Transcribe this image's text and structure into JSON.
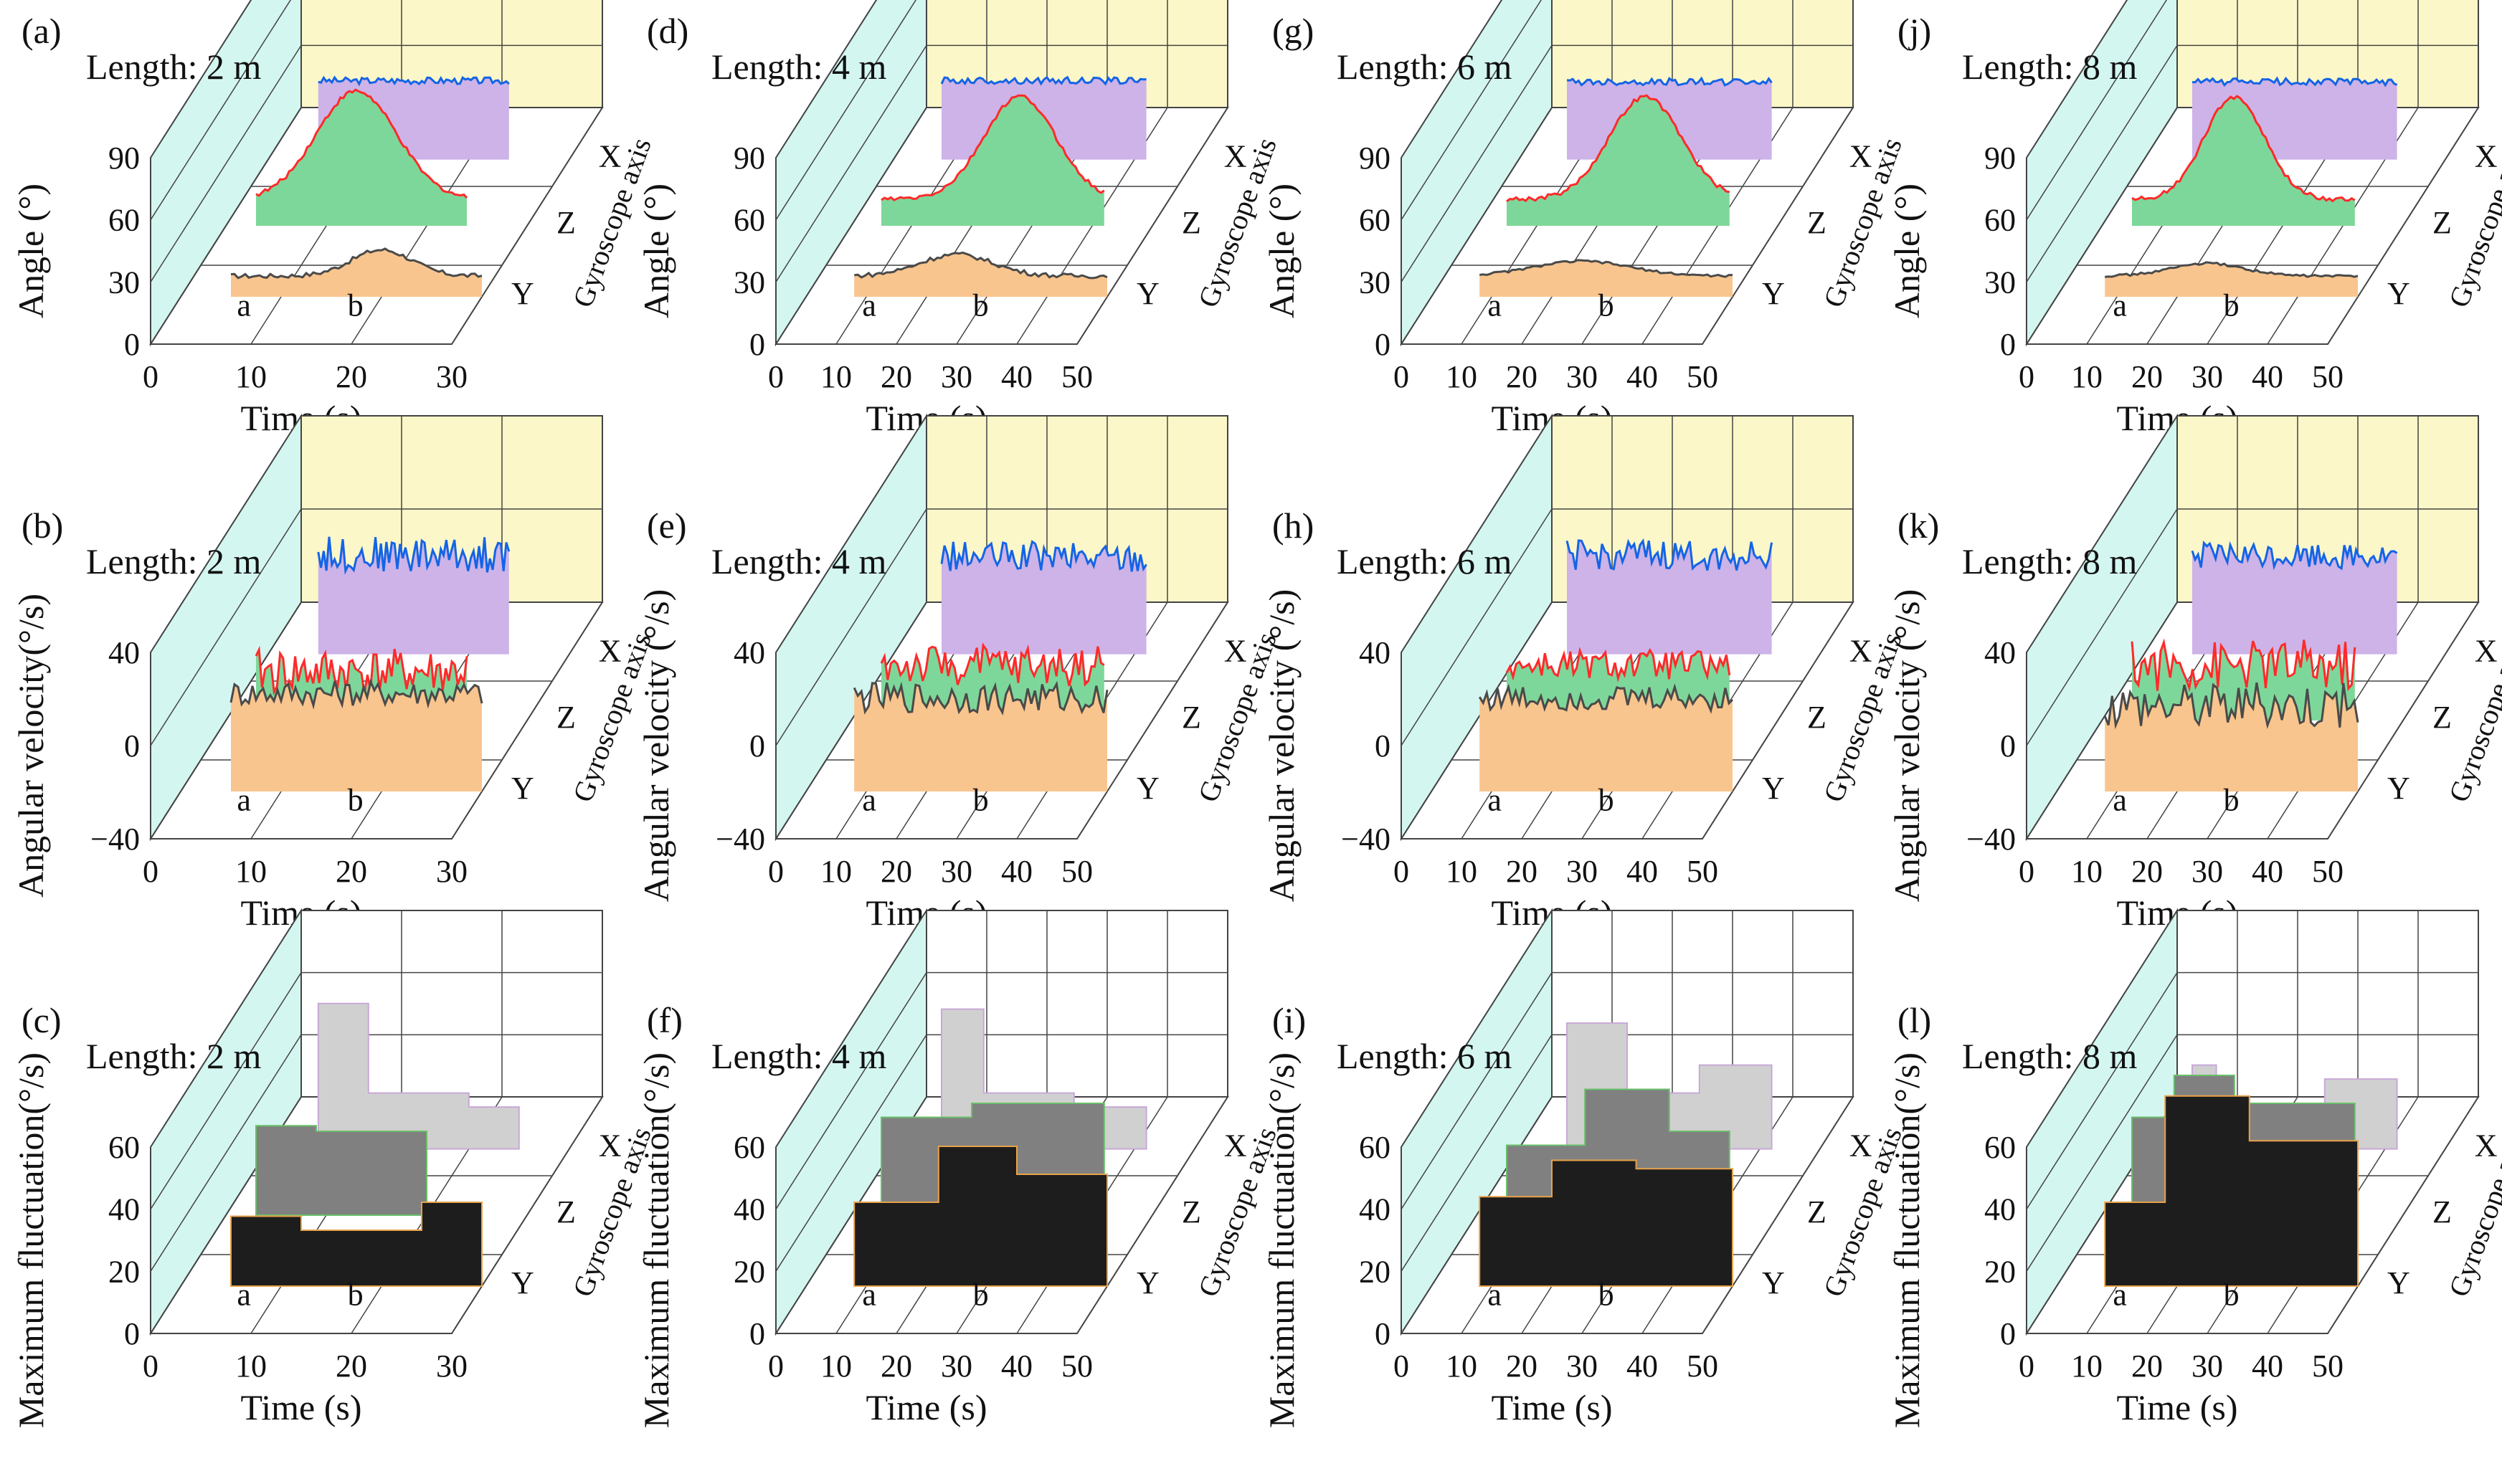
{
  "figure": {
    "colors": {
      "wall": "#d4f6f1",
      "back_wall": "#fbf7c8",
      "floor": "#ffffff",
      "grid": "#444444",
      "x_fill": "#cdb3e8",
      "x_line": "#1464e6",
      "z_fill": "#7ed79a",
      "z_line": "#ff2a2a",
      "y_fill": "#f9c58e",
      "y_line": "#4a4a4a",
      "fluct_x": "#d0d0d0",
      "fluct_z": "#808080",
      "fluct_y": "#1d1d1d",
      "fluct_z_edge": "#6abf6a",
      "fluct_y_edge": "#e8a24a",
      "fluct_x_edge": "#c9a8d8"
    }
  },
  "chart_data": [
    {
      "id": "a",
      "panel_label": "(a)",
      "title": "Length: 2 m",
      "type": "area3d",
      "ylabel": "Angle (°)",
      "xlabel": "Time (s)",
      "zlabel": "Gyroscope axis",
      "zcats": [
        "X",
        "Z",
        "Y"
      ],
      "xticks": [
        "0",
        "10",
        "20",
        "30"
      ],
      "yticks": [
        "0",
        "30",
        "60",
        "90"
      ],
      "xlim": [
        0,
        30
      ],
      "ylim": [
        0,
        90
      ],
      "markers": [
        "a",
        "b"
      ],
      "series": [
        {
          "name": "X",
          "start": 5,
          "end": 24,
          "base": 60,
          "peak": 72,
          "noise": 3
        },
        {
          "name": "Z",
          "start": 3,
          "end": 24,
          "base": 20,
          "peak": 115,
          "center": 13,
          "width": 4,
          "noise": 2
        },
        {
          "name": "Y",
          "start": 5,
          "end": 30,
          "base": 15,
          "peak": 38,
          "center": 20,
          "width": 3,
          "noise": 2
        }
      ]
    },
    {
      "id": "b",
      "panel_label": "(b)",
      "title": "Length: 2 m",
      "type": "area3d",
      "ylabel": "Angular velocity(°/s)",
      "xlabel": "Time (s)",
      "zlabel": "Gyroscope axis",
      "zcats": [
        "X",
        "Z",
        "Y"
      ],
      "xticks": [
        "0",
        "10",
        "20",
        "30"
      ],
      "yticks": [
        "−40",
        "0",
        "40"
      ],
      "xlim": [
        0,
        30
      ],
      "ylim": [
        -40,
        40
      ],
      "markers": [
        "a",
        "b"
      ],
      "series": [
        {
          "name": "X",
          "start": 5,
          "end": 24,
          "base": 30,
          "peak": 40,
          "noise": 14
        },
        {
          "name": "Z",
          "start": 3,
          "end": 24,
          "base": -10,
          "peak": 0,
          "noise": 18
        },
        {
          "name": "Y",
          "start": 5,
          "end": 30,
          "base": 30,
          "peak": 38,
          "noise": 10
        }
      ]
    },
    {
      "id": "c",
      "panel_label": "(c)",
      "title": "Length: 2 m",
      "type": "step3d",
      "ylabel": "Maximum fluctuation(°/s)",
      "xlabel": "Time (s)",
      "zlabel": "Gyroscope axis",
      "zcats": [
        "X",
        "Z",
        "Y"
      ],
      "xticks": [
        "0",
        "10",
        "20",
        "30"
      ],
      "yticks": [
        "0",
        "20",
        "40",
        "60"
      ],
      "xlim": [
        0,
        30
      ],
      "ylim": [
        0,
        60
      ],
      "markers": [
        "a",
        "b"
      ],
      "series": [
        {
          "name": "X",
          "x": [
            5,
            10,
            20,
            25
          ],
          "y": [
            52,
            20,
            15,
            18
          ]
        },
        {
          "name": "Z",
          "x": [
            3,
            9,
            15,
            20
          ],
          "y": [
            32,
            30,
            30,
            38
          ]
        },
        {
          "name": "Y",
          "x": [
            5,
            12,
            24,
            30
          ],
          "y": [
            25,
            20,
            30,
            30
          ]
        }
      ]
    },
    {
      "id": "d",
      "panel_label": "(d)",
      "title": "Length: 4 m",
      "type": "area3d",
      "ylabel": "Angle (°)",
      "xlabel": "Time (s)",
      "zlabel": "Gyroscope axis",
      "zcats": [
        "X",
        "Z",
        "Y"
      ],
      "xticks": [
        "0",
        "10",
        "20",
        "30",
        "40",
        "50"
      ],
      "yticks": [
        "0",
        "30",
        "60",
        "90"
      ],
      "xlim": [
        0,
        50
      ],
      "ylim": [
        0,
        90
      ],
      "markers": [
        "a",
        "b"
      ],
      "series": [
        {
          "name": "X",
          "start": 8,
          "end": 42,
          "base": 60,
          "peak": 72,
          "noise": 3
        },
        {
          "name": "Z",
          "start": 5,
          "end": 42,
          "base": 20,
          "peak": 110,
          "center": 28,
          "width": 6,
          "noise": 2
        },
        {
          "name": "Y",
          "start": 8,
          "end": 50,
          "base": 15,
          "peak": 34,
          "center": 25,
          "width": 6,
          "noise": 2
        }
      ]
    },
    {
      "id": "e",
      "panel_label": "(e)",
      "title": "Length: 4 m",
      "type": "area3d",
      "ylabel": "Angular velocity (°/s)",
      "xlabel": "Time (s)",
      "zlabel": "Gyroscope axis",
      "zcats": [
        "X",
        "Z",
        "Y"
      ],
      "xticks": [
        "0",
        "10",
        "20",
        "30",
        "40",
        "50"
      ],
      "yticks": [
        "−40",
        "0",
        "40"
      ],
      "xlim": [
        0,
        50
      ],
      "ylim": [
        -40,
        40
      ],
      "markers": [
        "a",
        "b"
      ],
      "series": [
        {
          "name": "X",
          "start": 8,
          "end": 42,
          "base": 28,
          "peak": 38,
          "noise": 12
        },
        {
          "name": "Z",
          "start": 5,
          "end": 42,
          "base": -5,
          "peak": 5,
          "noise": 16
        },
        {
          "name": "Y",
          "start": 8,
          "end": 50,
          "base": 25,
          "peak": 35,
          "noise": 12
        }
      ]
    },
    {
      "id": "f",
      "panel_label": "(f)",
      "title": "Length: 4 m",
      "type": "step3d",
      "ylabel": "Maximum fluctuation(°/s)",
      "xlabel": "Time (s)",
      "zlabel": "Gyroscope axis",
      "zcats": [
        "X",
        "Z",
        "Y"
      ],
      "xticks": [
        "0",
        "10",
        "20",
        "30",
        "40",
        "50"
      ],
      "yticks": [
        "0",
        "20",
        "40",
        "60"
      ],
      "xlim": [
        0,
        50
      ],
      "ylim": [
        0,
        60
      ],
      "markers": [
        "a",
        "b"
      ],
      "series": [
        {
          "name": "X",
          "x": [
            8,
            15,
            30,
            42
          ],
          "y": [
            50,
            20,
            15,
            15
          ]
        },
        {
          "name": "Z",
          "x": [
            5,
            20,
            32,
            42
          ],
          "y": [
            35,
            40,
            40,
            42
          ]
        },
        {
          "name": "Y",
          "x": [
            8,
            22,
            35,
            50
          ],
          "y": [
            30,
            50,
            40,
            40
          ]
        }
      ]
    },
    {
      "id": "g",
      "panel_label": "(g)",
      "title": "Length: 6 m",
      "type": "area3d",
      "ylabel": "Angle (°)",
      "xlabel": "Time (s)",
      "zlabel": "Gyroscope axis",
      "zcats": [
        "X",
        "Z",
        "Y"
      ],
      "xticks": [
        "0",
        "10",
        "20",
        "30",
        "40",
        "50"
      ],
      "yticks": [
        "0",
        "30",
        "60",
        "90"
      ],
      "xlim": [
        0,
        50
      ],
      "ylim": [
        0,
        90
      ],
      "markers": [
        "a",
        "b"
      ],
      "series": [
        {
          "name": "X",
          "start": 8,
          "end": 42,
          "base": 60,
          "peak": 70,
          "noise": 3
        },
        {
          "name": "Z",
          "start": 5,
          "end": 42,
          "base": 20,
          "peak": 110,
          "center": 28,
          "width": 6,
          "noise": 2
        },
        {
          "name": "Y",
          "start": 8,
          "end": 50,
          "base": 15,
          "peak": 28,
          "center": 25,
          "width": 8,
          "noise": 1
        }
      ]
    },
    {
      "id": "h",
      "panel_label": "(h)",
      "title": "Length: 6 m",
      "type": "area3d",
      "ylabel": "Angular velocity (°/s)",
      "xlabel": "Time (s)",
      "zlabel": "Gyroscope axis",
      "zcats": [
        "X",
        "Z",
        "Y"
      ],
      "xticks": [
        "0",
        "10",
        "20",
        "30",
        "40",
        "50"
      ],
      "yticks": [
        "−40",
        "0",
        "40"
      ],
      "xlim": [
        0,
        50
      ],
      "ylim": [
        -40,
        40
      ],
      "markers": [
        "a",
        "b"
      ],
      "series": [
        {
          "name": "X",
          "start": 8,
          "end": 42,
          "base": 28,
          "peak": 40,
          "noise": 12
        },
        {
          "name": "Z",
          "start": 5,
          "end": 42,
          "base": -5,
          "peak": 5,
          "noise": 12
        },
        {
          "name": "Y",
          "start": 8,
          "end": 50,
          "base": 25,
          "peak": 35,
          "noise": 10
        }
      ]
    },
    {
      "id": "i",
      "panel_label": "(i)",
      "title": "Length: 6 m",
      "type": "step3d",
      "ylabel": "Maximum fluctuation(°/s)",
      "xlabel": "Time (s)",
      "zlabel": "Gyroscope axis",
      "zcats": [
        "X",
        "Z",
        "Y"
      ],
      "xticks": [
        "0",
        "10",
        "20",
        "30",
        "40",
        "50"
      ],
      "yticks": [
        "0",
        "20",
        "40",
        "60"
      ],
      "xlim": [
        0,
        50
      ],
      "ylim": [
        0,
        60
      ],
      "markers": [
        "a",
        "b"
      ],
      "series": [
        {
          "name": "X",
          "x": [
            8,
            18,
            30,
            42
          ],
          "y": [
            45,
            20,
            30,
            20
          ]
        },
        {
          "name": "Z",
          "x": [
            5,
            18,
            32,
            42
          ],
          "y": [
            25,
            45,
            30,
            30
          ]
        },
        {
          "name": "Y",
          "x": [
            8,
            20,
            34,
            50
          ],
          "y": [
            32,
            45,
            42,
            42
          ]
        }
      ]
    },
    {
      "id": "j",
      "panel_label": "(j)",
      "title": "Length: 8 m",
      "type": "area3d",
      "ylabel": "Angle (°)",
      "xlabel": "Time (s)",
      "zlabel": "Gyroscope axis",
      "zcats": [
        "X",
        "Z",
        "Y"
      ],
      "xticks": [
        "0",
        "10",
        "20",
        "30",
        "40",
        "50"
      ],
      "yticks": [
        "0",
        "30",
        "60",
        "90"
      ],
      "xlim": [
        0,
        50
      ],
      "ylim": [
        0,
        90
      ],
      "markers": [
        "a",
        "b"
      ],
      "series": [
        {
          "name": "X",
          "start": 8,
          "end": 42,
          "base": 60,
          "peak": 70,
          "noise": 3
        },
        {
          "name": "Z",
          "start": 5,
          "end": 42,
          "base": 20,
          "peak": 110,
          "center": 22,
          "width": 5,
          "noise": 2
        },
        {
          "name": "Y",
          "start": 8,
          "end": 50,
          "base": 15,
          "peak": 26,
          "center": 25,
          "width": 6,
          "noise": 1
        }
      ]
    },
    {
      "id": "k",
      "panel_label": "(k)",
      "title": "Length: 8 m",
      "type": "area3d",
      "ylabel": "Angular velocity (°/s)",
      "xlabel": "Time (s)",
      "zlabel": "Gyroscope axis",
      "zcats": [
        "X",
        "Z",
        "Y"
      ],
      "xticks": [
        "0",
        "10",
        "20",
        "30",
        "40",
        "50"
      ],
      "yticks": [
        "−40",
        "0",
        "40"
      ],
      "xlim": [
        0,
        50
      ],
      "ylim": [
        -40,
        40
      ],
      "markers": [
        "a",
        "b"
      ],
      "series": [
        {
          "name": "X",
          "start": 8,
          "end": 42,
          "base": 28,
          "peak": 40,
          "noise": 10
        },
        {
          "name": "Z",
          "start": 5,
          "end": 42,
          "base": -5,
          "peak": 5,
          "noise": 20
        },
        {
          "name": "Y",
          "start": 8,
          "end": 50,
          "base": 20,
          "peak": 30,
          "noise": 18
        }
      ]
    },
    {
      "id": "l",
      "panel_label": "(l)",
      "title": "Length: 8 m",
      "type": "step3d",
      "ylabel": "Maximum fluctuation(°/s)",
      "xlabel": "Time (s)",
      "zlabel": "Gyroscope axis",
      "zcats": [
        "X",
        "Z",
        "Y"
      ],
      "xticks": [
        "0",
        "10",
        "20",
        "30",
        "40",
        "50"
      ],
      "yticks": [
        "0",
        "20",
        "40",
        "60"
      ],
      "xlim": [
        0,
        50
      ],
      "ylim": [
        0,
        60
      ],
      "markers": [
        "a",
        "b"
      ],
      "series": [
        {
          "name": "X",
          "x": [
            8,
            12,
            30,
            42
          ],
          "y": [
            30,
            15,
            25,
            25
          ]
        },
        {
          "name": "Z",
          "x": [
            5,
            12,
            22,
            42
          ],
          "y": [
            35,
            50,
            40,
            40
          ]
        },
        {
          "name": "Y",
          "x": [
            8,
            18,
            32,
            50
          ],
          "y": [
            30,
            68,
            52,
            52
          ]
        }
      ]
    }
  ]
}
